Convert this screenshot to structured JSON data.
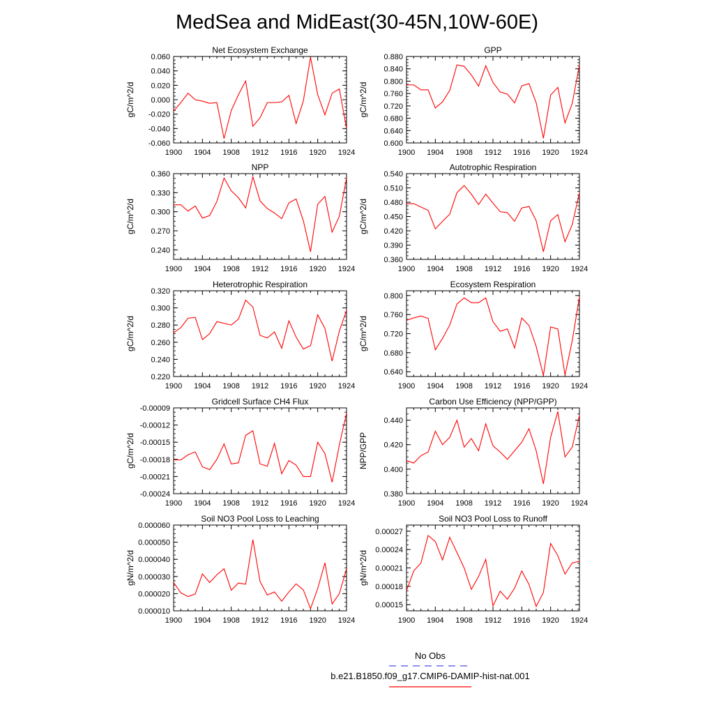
{
  "page_title": "MedSea and MidEast(30-45N,10W-60E)",
  "line_color": "#ff0000",
  "obs_color": "#4a52e8",
  "legend": {
    "obs_label": "No Obs",
    "model_label": "b.e21.B1850.f09_g17.CMIP6-DAMIP-hist-nat.001"
  },
  "chart_data": [
    {
      "type": "line",
      "title": "Net Ecosystem Exchange",
      "ylabel": "gC/m^2/d",
      "ylim": [
        -0.06,
        0.06
      ],
      "yticks": [
        "0.060",
        "0.040",
        "0.020",
        "0.000",
        "-0.020",
        "-0.040",
        "-0.060"
      ],
      "xlim": [
        1900,
        1924
      ],
      "xticks": [
        "1900",
        "1904",
        "1908",
        "1912",
        "1916",
        "1920",
        "1924"
      ],
      "x": [
        1900,
        1901,
        1902,
        1903,
        1904,
        1905,
        1906,
        1907,
        1908,
        1909,
        1910,
        1911,
        1912,
        1913,
        1914,
        1915,
        1916,
        1917,
        1918,
        1919,
        1920,
        1921,
        1922,
        1923,
        1924
      ],
      "values": [
        -0.016,
        -0.004,
        0.009,
        0.0,
        -0.002,
        -0.005,
        -0.004,
        -0.054,
        -0.015,
        0.007,
        0.026,
        -0.037,
        -0.025,
        -0.004,
        -0.004,
        -0.003,
        0.006,
        -0.033,
        -0.002,
        0.059,
        0.007,
        -0.021,
        0.009,
        0.015,
        -0.04
      ]
    },
    {
      "type": "line",
      "title": "GPP",
      "ylabel": "gC/m^2/d",
      "ylim": [
        0.6,
        0.88
      ],
      "yticks": [
        "0.880",
        "0.840",
        "0.800",
        "0.760",
        "0.720",
        "0.680",
        "0.640",
        "0.600"
      ],
      "xlim": [
        1900,
        1924
      ],
      "xticks": [
        "1900",
        "1904",
        "1908",
        "1912",
        "1916",
        "1920",
        "1924"
      ],
      "x": [
        1900,
        1901,
        1902,
        1903,
        1904,
        1905,
        1906,
        1907,
        1908,
        1909,
        1910,
        1911,
        1912,
        1913,
        1914,
        1915,
        1916,
        1917,
        1918,
        1919,
        1920,
        1921,
        1922,
        1923,
        1924
      ],
      "values": [
        0.788,
        0.788,
        0.772,
        0.772,
        0.713,
        0.733,
        0.77,
        0.853,
        0.848,
        0.82,
        0.784,
        0.85,
        0.796,
        0.765,
        0.758,
        0.73,
        0.785,
        0.792,
        0.73,
        0.615,
        0.755,
        0.78,
        0.665,
        0.728,
        0.852
      ]
    },
    {
      "type": "line",
      "title": "NPP",
      "ylabel": "gC/m^2/d",
      "ylim": [
        0.225,
        0.36
      ],
      "yticks": [
        "0.360",
        "0.330",
        "0.300",
        "0.270",
        "0.240"
      ],
      "xlim": [
        1900,
        1924
      ],
      "xticks": [
        "1900",
        "1904",
        "1908",
        "1912",
        "1916",
        "1920",
        "1924"
      ],
      "x": [
        1900,
        1901,
        1902,
        1903,
        1904,
        1905,
        1906,
        1907,
        1908,
        1909,
        1910,
        1911,
        1912,
        1913,
        1914,
        1915,
        1916,
        1917,
        1918,
        1919,
        1920,
        1921,
        1922,
        1923,
        1924
      ],
      "values": [
        0.311,
        0.311,
        0.301,
        0.309,
        0.29,
        0.294,
        0.316,
        0.353,
        0.333,
        0.322,
        0.306,
        0.355,
        0.317,
        0.305,
        0.298,
        0.289,
        0.314,
        0.32,
        0.286,
        0.237,
        0.312,
        0.324,
        0.268,
        0.293,
        0.353
      ]
    },
    {
      "type": "line",
      "title": "Autotrophic Respiration",
      "ylabel": "gC/m^2/d",
      "ylim": [
        0.36,
        0.54
      ],
      "yticks": [
        "0.540",
        "0.510",
        "0.480",
        "0.450",
        "0.420",
        "0.390",
        "0.360"
      ],
      "xlim": [
        1900,
        1924
      ],
      "xticks": [
        "1900",
        "1904",
        "1908",
        "1912",
        "1916",
        "1920",
        "1924"
      ],
      "x": [
        1900,
        1901,
        1902,
        1903,
        1904,
        1905,
        1906,
        1907,
        1908,
        1909,
        1910,
        1911,
        1912,
        1913,
        1914,
        1915,
        1916,
        1917,
        1918,
        1919,
        1920,
        1921,
        1922,
        1923,
        1924
      ],
      "values": [
        0.477,
        0.477,
        0.47,
        0.463,
        0.424,
        0.44,
        0.455,
        0.5,
        0.515,
        0.497,
        0.475,
        0.497,
        0.478,
        0.46,
        0.458,
        0.44,
        0.468,
        0.471,
        0.441,
        0.376,
        0.441,
        0.454,
        0.397,
        0.433,
        0.5
      ]
    },
    {
      "type": "line",
      "title": "Heterotrophic Respiration",
      "ylabel": "gC/m^2/d",
      "ylim": [
        0.22,
        0.32
      ],
      "yticks": [
        "0.320",
        "0.300",
        "0.280",
        "0.260",
        "0.240",
        "0.220"
      ],
      "xlim": [
        1900,
        1924
      ],
      "xticks": [
        "1900",
        "1904",
        "1908",
        "1912",
        "1916",
        "1920",
        "1924"
      ],
      "x": [
        1900,
        1901,
        1902,
        1903,
        1904,
        1905,
        1906,
        1907,
        1908,
        1909,
        1910,
        1911,
        1912,
        1913,
        1914,
        1915,
        1916,
        1917,
        1918,
        1919,
        1920,
        1921,
        1922,
        1923,
        1924
      ],
      "values": [
        0.271,
        0.277,
        0.288,
        0.289,
        0.263,
        0.27,
        0.284,
        0.282,
        0.28,
        0.287,
        0.309,
        0.301,
        0.268,
        0.265,
        0.272,
        0.253,
        0.285,
        0.266,
        0.252,
        0.256,
        0.292,
        0.276,
        0.238,
        0.273,
        0.297
      ]
    },
    {
      "type": "line",
      "title": "Ecosystem Respiration",
      "ylabel": "gC/m^2/d",
      "ylim": [
        0.63,
        0.81
      ],
      "yticks": [
        "0.800",
        "0.760",
        "0.720",
        "0.680",
        "0.640"
      ],
      "xlim": [
        1900,
        1924
      ],
      "xticks": [
        "1900",
        "1904",
        "1908",
        "1912",
        "1916",
        "1920",
        "1924"
      ],
      "x": [
        1900,
        1901,
        1902,
        1903,
        1904,
        1905,
        1906,
        1907,
        1908,
        1909,
        1910,
        1911,
        1912,
        1913,
        1914,
        1915,
        1916,
        1917,
        1918,
        1919,
        1920,
        1921,
        1922,
        1923,
        1924
      ],
      "values": [
        0.748,
        0.753,
        0.757,
        0.752,
        0.686,
        0.71,
        0.738,
        0.782,
        0.795,
        0.785,
        0.785,
        0.795,
        0.745,
        0.725,
        0.73,
        0.69,
        0.753,
        0.737,
        0.693,
        0.632,
        0.734,
        0.73,
        0.633,
        0.705,
        0.797
      ]
    },
    {
      "type": "line",
      "title": "Gridcell Surface CH4 Flux",
      "ylabel": "gC/m^2/d",
      "ylim": [
        -0.00024,
        -9e-05
      ],
      "yticks": [
        "-0.00009",
        "-0.00012",
        "-0.00015",
        "-0.00018",
        "-0.00021",
        "-0.00024"
      ],
      "xlim": [
        1900,
        1924
      ],
      "xticks": [
        "1900",
        "1904",
        "1908",
        "1912",
        "1916",
        "1920",
        "1924"
      ],
      "x": [
        1900,
        1901,
        1902,
        1903,
        1904,
        1905,
        1906,
        1907,
        1908,
        1909,
        1910,
        1911,
        1912,
        1913,
        1914,
        1915,
        1916,
        1917,
        1918,
        1919,
        1920,
        1921,
        1922,
        1923,
        1924
      ],
      "values": [
        -0.000181,
        -0.000181,
        -0.000172,
        -0.000167,
        -0.000193,
        -0.000198,
        -0.00018,
        -0.000153,
        -0.000188,
        -0.000186,
        -0.000138,
        -0.00013,
        -0.000188,
        -0.000192,
        -0.000152,
        -0.000205,
        -0.000182,
        -0.00019,
        -0.00021,
        -0.00021,
        -0.00015,
        -0.00017,
        -0.00022,
        -0.000155,
        -9.9e-05
      ]
    },
    {
      "type": "line",
      "title": "Carbon Use Efficiency (NPP/GPP)",
      "ylabel": "NPP/GPP",
      "ylim": [
        0.38,
        0.45
      ],
      "yticks": [
        "0.440",
        "0.420",
        "0.400",
        "0.380"
      ],
      "xlim": [
        1900,
        1924
      ],
      "xticks": [
        "1900",
        "1904",
        "1908",
        "1912",
        "1916",
        "1920",
        "1924"
      ],
      "x": [
        1900,
        1901,
        1902,
        1903,
        1904,
        1905,
        1906,
        1907,
        1908,
        1909,
        1910,
        1911,
        1912,
        1913,
        1914,
        1915,
        1916,
        1917,
        1918,
        1919,
        1920,
        1921,
        1922,
        1923,
        1924
      ],
      "values": [
        0.407,
        0.405,
        0.411,
        0.414,
        0.431,
        0.42,
        0.426,
        0.44,
        0.418,
        0.425,
        0.415,
        0.437,
        0.419,
        0.414,
        0.408,
        0.415,
        0.422,
        0.433,
        0.415,
        0.388,
        0.426,
        0.447,
        0.41,
        0.418,
        0.444
      ]
    },
    {
      "type": "line",
      "title": "Soil NO3 Pool Loss to Leaching",
      "ylabel": "gN/m^2/d",
      "ylim": [
        1e-05,
        6e-05
      ],
      "yticks": [
        "0.000060",
        "0.000050",
        "0.000040",
        "0.000030",
        "0.000020",
        "0.000010"
      ],
      "xlim": [
        1900,
        1924
      ],
      "xticks": [
        "1900",
        "1904",
        "1908",
        "1912",
        "1916",
        "1920",
        "1924"
      ],
      "x": [
        1900,
        1901,
        1902,
        1903,
        1904,
        1905,
        1906,
        1907,
        1908,
        1909,
        1910,
        1911,
        1912,
        1913,
        1914,
        1915,
        1916,
        1917,
        1918,
        1919,
        1920,
        1921,
        1922,
        1923,
        1924
      ],
      "values": [
        2.65e-05,
        2.05e-05,
        1.83e-05,
        1.98e-05,
        3.15e-05,
        2.65e-05,
        3.1e-05,
        3.45e-05,
        2.2e-05,
        2.62e-05,
        2.55e-05,
        5.15e-05,
        2.7e-05,
        1.92e-05,
        2.1e-05,
        1.56e-05,
        2.1e-05,
        2.57e-05,
        2.22e-05,
        1.12e-05,
        2.3e-05,
        3.8e-05,
        1.4e-05,
        2e-05,
        3.45e-05
      ]
    },
    {
      "type": "line",
      "title": "Soil NO3 Pool Loss to Runoff",
      "ylabel": "gN/m^2/d",
      "ylim": [
        0.00014,
        0.00028
      ],
      "yticks": [
        "0.00027",
        "0.00024",
        "0.00021",
        "0.00018",
        "0.00015"
      ],
      "xlim": [
        1900,
        1924
      ],
      "xticks": [
        "1900",
        "1904",
        "1908",
        "1912",
        "1916",
        "1920",
        "1924"
      ],
      "x": [
        1900,
        1901,
        1902,
        1903,
        1904,
        1905,
        1906,
        1907,
        1908,
        1909,
        1910,
        1911,
        1912,
        1913,
        1914,
        1915,
        1916,
        1917,
        1918,
        1919,
        1920,
        1921,
        1922,
        1923,
        1924
      ],
      "values": [
        0.000173,
        0.000205,
        0.000218,
        0.000263,
        0.000253,
        0.000223,
        0.00026,
        0.000235,
        0.00021,
        0.000175,
        0.000196,
        0.000224,
        0.000148,
        0.000172,
        0.000159,
        0.000177,
        0.000205,
        0.000183,
        0.000147,
        0.00017,
        0.00025,
        0.00023,
        0.0002,
        0.000218,
        0.000221
      ]
    }
  ]
}
